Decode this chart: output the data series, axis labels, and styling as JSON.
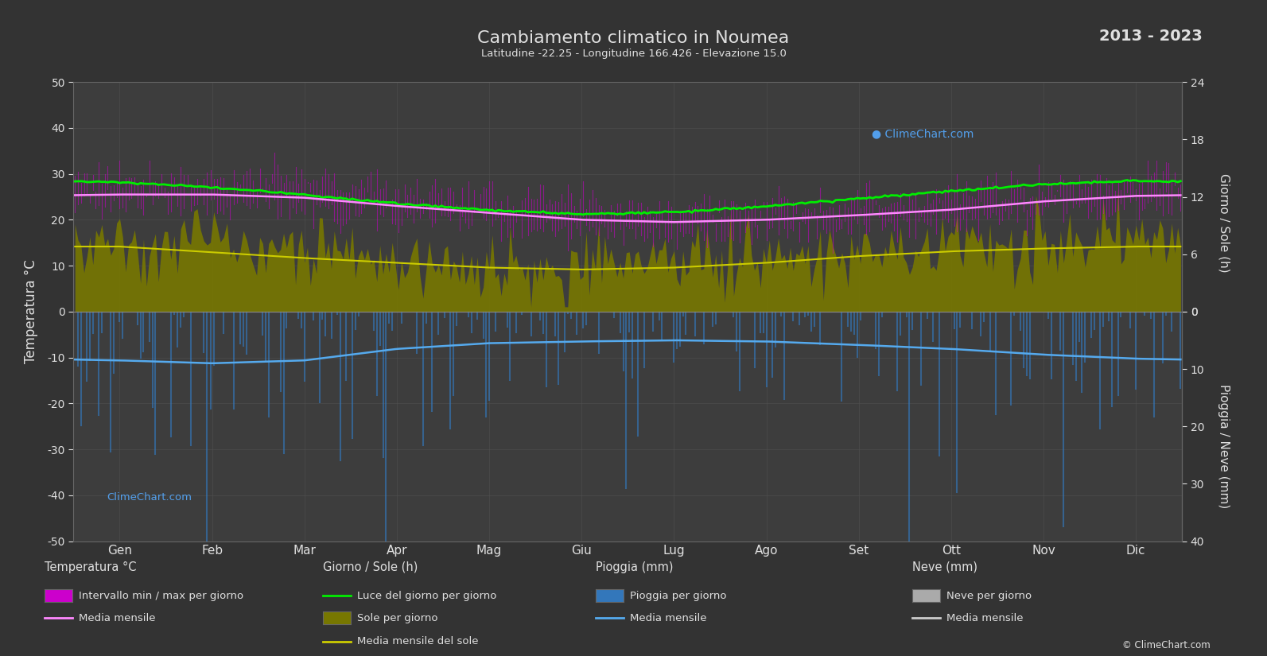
{
  "title": "Cambiamento climatico in Noumea",
  "subtitle": "Latitudine -22.25 - Longitudine 166.426 - Elevazione 15.0",
  "year_range": "2013 - 2023",
  "months": [
    "Gen",
    "Feb",
    "Mar",
    "Apr",
    "Mag",
    "Giu",
    "Lug",
    "Ago",
    "Set",
    "Ott",
    "Nov",
    "Dic"
  ],
  "background_color": "#333333",
  "plot_bg_color": "#3d3d3d",
  "grid_color": "#555555",
  "text_color": "#e0e0e0",
  "temp_ylim": [
    -50,
    50
  ],
  "temp_yticks": [
    -50,
    -40,
    -30,
    -20,
    -10,
    0,
    10,
    20,
    30,
    40,
    50
  ],
  "sun_ylim": [
    0,
    24
  ],
  "sun_yticks": [
    0,
    6,
    12,
    18,
    24
  ],
  "rain_yticks_mm": [
    0,
    10,
    20,
    30,
    40
  ],
  "temp_max_monthly": [
    29.5,
    29.2,
    28.5,
    26.8,
    24.8,
    23.2,
    22.5,
    23.0,
    24.0,
    25.5,
    27.2,
    28.8
  ],
  "temp_min_monthly": [
    23.5,
    23.5,
    22.8,
    21.0,
    19.2,
    17.8,
    17.2,
    17.5,
    18.5,
    20.0,
    21.8,
    23.0
  ],
  "temp_mean_monthly": [
    25.5,
    25.5,
    24.8,
    23.0,
    21.5,
    20.0,
    19.5,
    20.0,
    21.0,
    22.2,
    24.0,
    25.2
  ],
  "daylight_hours_monthly": [
    13.5,
    13.0,
    12.2,
    11.3,
    10.6,
    10.2,
    10.4,
    11.0,
    11.8,
    12.6,
    13.3,
    13.7
  ],
  "sunshine_hours_monthly": [
    7.2,
    6.5,
    6.0,
    5.5,
    5.0,
    4.8,
    5.0,
    5.5,
    6.2,
    6.8,
    7.0,
    7.2
  ],
  "sunshine_mean_monthly": [
    6.8,
    6.2,
    5.6,
    5.1,
    4.6,
    4.4,
    4.6,
    5.1,
    5.8,
    6.3,
    6.6,
    6.8
  ],
  "rain_daily_mean_monthly": [
    8.5,
    9.0,
    8.5,
    6.5,
    5.5,
    5.2,
    5.0,
    5.2,
    5.8,
    6.5,
    7.5,
    8.2
  ],
  "color_temp_bar": "#cc00cc",
  "color_temp_mean": "#ff88ff",
  "color_daylight": "#00ee00",
  "color_sunshine_fill": "#777700",
  "color_sunshine_mean": "#cccc00",
  "color_rain_bar": "#3377bb",
  "color_rain_mean": "#55aaee",
  "color_snow_bar": "#aaaaaa",
  "color_snow_mean": "#cccccc",
  "legend_col1_title": "Temperatura °C",
  "legend_col2_title": "Giorno / Sole (h)",
  "legend_col3_title": "Pioggia (mm)",
  "legend_col4_title": "Neve (mm)",
  "ylabel_left": "Temperatura °C",
  "ylabel_right_top": "Giorno / Sole (h)",
  "ylabel_right_bottom": "Pioggia / Neve (mm)"
}
